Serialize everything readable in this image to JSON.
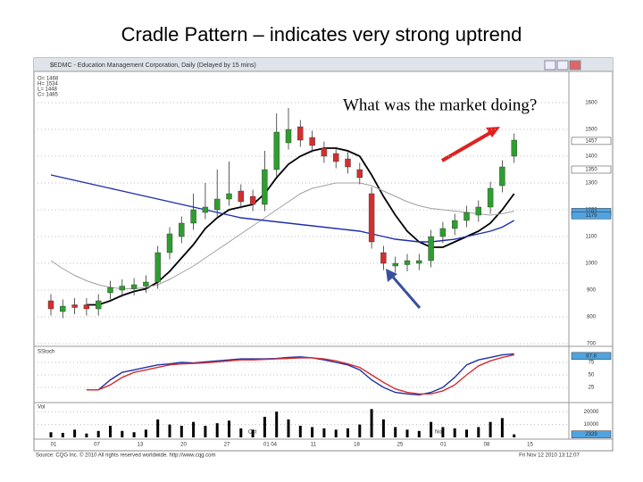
{
  "slide": {
    "title": "Cradle Pattern – indicates very strong uptrend",
    "annotation": "What was the market doing?",
    "window_title": "$EDMC - Education Management Corporation, Daily (Delayed by 15 mins)",
    "ohlc_legend": [
      "O= 1468",
      "H= 1534",
      "L= 1448",
      "C= 1485"
    ],
    "source": "Source: CQG Inc. © 2010 All rights reserved worldwide. http://www.cqg.com",
    "timestamp": "Fri Nov 12 2010 13:12:07",
    "x_labels": [
      "01",
      "07",
      "13",
      "20",
      "27",
      "01 04",
      "11",
      "18",
      "25",
      "01",
      "08",
      "15"
    ],
    "month_labels": [
      "Oct",
      "Nov"
    ]
  },
  "chart_data": [
    {
      "type": "candlestick",
      "up_color": "#2e9e2e",
      "down_color": "#d32f2f",
      "open": [
        860,
        820,
        845,
        845,
        830,
        890,
        900,
        905,
        915,
        930,
        1040,
        1100,
        1150,
        1190,
        1200,
        1240,
        1270,
        1250,
        1220,
        1350,
        1450,
        1510,
        1470,
        1430,
        1410,
        1390,
        1350,
        1260,
        1040,
        990,
        995,
        1000,
        1010,
        1100,
        1130,
        1160,
        1180,
        1210,
        1290,
        1400
      ],
      "high": [
        885,
        865,
        870,
        870,
        885,
        935,
        940,
        945,
        955,
        1065,
        1135,
        1175,
        1260,
        1300,
        1350,
        1380,
        1295,
        1275,
        1420,
        1560,
        1580,
        1535,
        1495,
        1455,
        1435,
        1415,
        1375,
        1285,
        1065,
        1025,
        1035,
        1035,
        1125,
        1155,
        1185,
        1215,
        1235,
        1305,
        1385,
        1485
      ],
      "low": [
        805,
        795,
        810,
        805,
        805,
        865,
        875,
        880,
        890,
        905,
        1015,
        1075,
        1125,
        1165,
        1175,
        1215,
        1205,
        1195,
        1195,
        1325,
        1425,
        1435,
        1415,
        1375,
        1355,
        1335,
        1295,
        1055,
        975,
        965,
        970,
        975,
        985,
        1075,
        1105,
        1135,
        1155,
        1185,
        1265,
        1375
      ],
      "close": [
        830,
        840,
        835,
        830,
        860,
        910,
        915,
        920,
        930,
        1040,
        1110,
        1150,
        1200,
        1210,
        1240,
        1260,
        1230,
        1220,
        1350,
        1490,
        1500,
        1460,
        1440,
        1400,
        1380,
        1360,
        1320,
        1080,
        1000,
        1000,
        1010,
        1010,
        1100,
        1130,
        1160,
        1190,
        1210,
        1280,
        1360,
        1460
      ],
      "series": [
        {
          "color": "#000000",
          "values": [
            null,
            null,
            null,
            845,
            845,
            860,
            880,
            895,
            905,
            930,
            970,
            1020,
            1070,
            1130,
            1170,
            1200,
            1210,
            1220,
            1260,
            1320,
            1370,
            1400,
            1420,
            1430,
            1430,
            1420,
            1400,
            1330,
            1250,
            1180,
            1120,
            1080,
            1060,
            1060,
            1080,
            1100,
            1120,
            1150,
            1200,
            1260
          ]
        },
        {
          "color": "#a0a0a0",
          "values": [
            1010,
            980,
            955,
            935,
            920,
            910,
            905,
            905,
            910,
            920,
            940,
            965,
            990,
            1020,
            1050,
            1080,
            1110,
            1140,
            1170,
            1200,
            1230,
            1260,
            1280,
            1290,
            1300,
            1300,
            1300,
            1290,
            1270,
            1250,
            1230,
            1215,
            1205,
            1200,
            1195,
            1190,
            1185,
            1180,
            1185,
            1195
          ]
        },
        {
          "color": "#1f2fa8",
          "values": [
            1330,
            1320,
            1310,
            1300,
            1290,
            1280,
            1270,
            1260,
            1250,
            1240,
            1230,
            1220,
            1210,
            1200,
            1190,
            1180,
            1170,
            1165,
            1160,
            1155,
            1150,
            1145,
            1140,
            1135,
            1130,
            1125,
            1120,
            1110,
            1100,
            1090,
            1085,
            1080,
            1080,
            1085,
            1090,
            1100,
            1110,
            1120,
            1135,
            1160
          ]
        }
      ],
      "ylim": [
        700,
        1700
      ],
      "yticks": [
        700,
        800,
        900,
        1000,
        1100,
        1200,
        1300,
        1400,
        1500,
        1600
      ],
      "tags": [
        {
          "value": 1457,
          "color": "#ffffff"
        },
        {
          "value": 1350,
          "color": "#ffffff"
        },
        {
          "value": 1192,
          "color": "#4fa3e0"
        },
        {
          "value": 1179,
          "color": "#4fa3e0"
        }
      ]
    },
    {
      "type": "line",
      "title": "SStoch",
      "series": [
        {
          "color": "#1f2fa8",
          "values": [
            null,
            null,
            null,
            20,
            20,
            40,
            55,
            60,
            65,
            70,
            72,
            75,
            74,
            76,
            78,
            80,
            82,
            82,
            82,
            83,
            85,
            86,
            84,
            80,
            75,
            70,
            60,
            40,
            25,
            15,
            12,
            10,
            15,
            25,
            45,
            70,
            80,
            85,
            90,
            92
          ]
        },
        {
          "color": "#d32f2f",
          "values": [
            null,
            null,
            null,
            20,
            20,
            30,
            45,
            55,
            60,
            65,
            70,
            72,
            73,
            74,
            76,
            78,
            80,
            80,
            81,
            82,
            83,
            84,
            84,
            82,
            78,
            72,
            65,
            50,
            35,
            22,
            15,
            12,
            12,
            18,
            30,
            50,
            68,
            78,
            85,
            90
          ]
        }
      ],
      "ylim": [
        0,
        100
      ],
      "yticks": [
        25,
        50,
        75
      ],
      "tags": [
        {
          "value": 87.8,
          "color": "#4fa3e0"
        }
      ]
    },
    {
      "type": "bar",
      "title": "Vol",
      "color": "#000000",
      "values": [
        4000,
        3500,
        6000,
        3000,
        5000,
        9000,
        5000,
        4000,
        6000,
        14000,
        10000,
        9000,
        12000,
        9000,
        11000,
        13000,
        7000,
        6000,
        16000,
        20000,
        14000,
        9000,
        8000,
        7000,
        6000,
        7000,
        10000,
        22000,
        14000,
        8000,
        6000,
        5000,
        12000,
        8000,
        7000,
        6000,
        8000,
        12000,
        15000,
        2329
      ],
      "ylim": [
        0,
        25000
      ],
      "yticks": [
        10000,
        20000
      ],
      "tags": [
        {
          "value": 2329,
          "color": "#4fa3e0"
        }
      ]
    }
  ]
}
